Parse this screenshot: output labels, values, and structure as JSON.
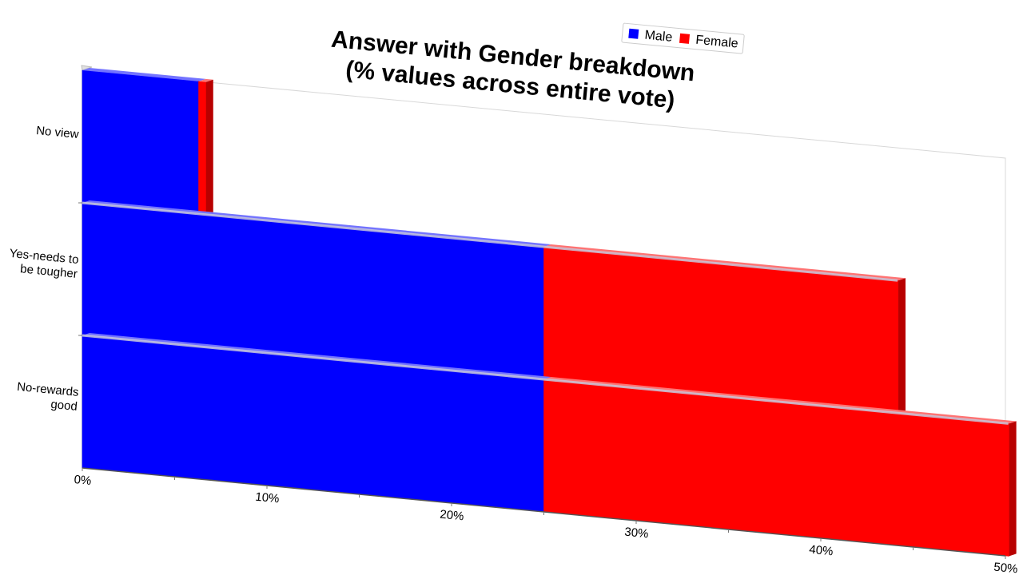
{
  "chart_data": {
    "type": "bar",
    "orientation": "horizontal",
    "stacked": true,
    "title": [
      "Answer with Gender breakdown",
      "(% values across entire vote)"
    ],
    "categories": [
      "No view",
      "Yes-needs to be tougher",
      "No-rewards good"
    ],
    "category_label_lines": [
      [
        "No view"
      ],
      [
        "Yes-needs to",
        "be tougher"
      ],
      [
        "No-rewards",
        "good"
      ]
    ],
    "series": [
      {
        "name": "Male",
        "color": "#0000ff",
        "values": [
          6.3,
          25.0,
          25.0
        ]
      },
      {
        "name": "Female",
        "color": "#ff0000",
        "values": [
          0.4,
          19.2,
          25.2
        ]
      }
    ],
    "xlim": [
      0,
      50
    ],
    "xticks": [
      "0%",
      "10%",
      "20%",
      "30%",
      "40%",
      "50%"
    ],
    "tick_values": [
      0,
      10,
      20,
      30,
      40,
      50
    ],
    "legend_position": "top-right",
    "grid": false
  }
}
